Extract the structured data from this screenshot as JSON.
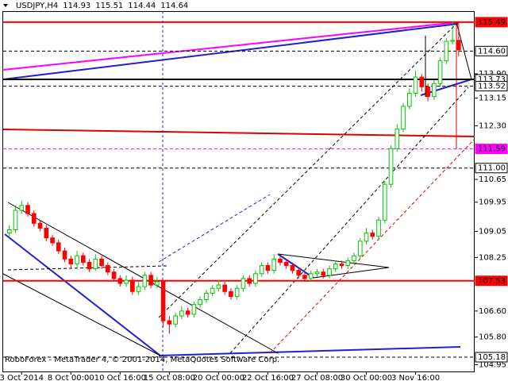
{
  "chart_data": {
    "type": "candlestick",
    "symbol": "USDJPY,H4",
    "footer": "RoboForex - MetaTrader 4, © 2001-2014, MetaQuotes Software Corp.",
    "up_color": "#00c800",
    "down_color": "#ff0000",
    "grid": false,
    "xlim": [
      -1,
      75.6
    ],
    "ylim": [
      104.74,
      115.83
    ],
    "xticks": [
      {
        "value": 2,
        "label": "3 Oct 2014"
      },
      {
        "value": 10,
        "label": "8 Oct 00:00"
      },
      {
        "value": 18,
        "label": "10 Oct 16:00"
      },
      {
        "value": 26,
        "label": "15 Oct 08:00"
      },
      {
        "value": 34,
        "label": "20 Oct 00:00"
      },
      {
        "value": 42,
        "label": "22 Oct 16:00"
      },
      {
        "value": 50,
        "label": "27 Oct 08:00"
      },
      {
        "value": 58,
        "label": "30 Oct 00:00"
      },
      {
        "value": 66,
        "label": "3 Nov 16:00"
      }
    ],
    "yticks": [
      {
        "value": 113.9,
        "label": "113.90"
      },
      113.15,
      {
        "value": 112.3,
        "label": "112.30"
      },
      110.65,
      109.95,
      109.05,
      108.25,
      {
        "value": 106.6,
        "label": "106.60"
      },
      {
        "value": 105.8,
        "label": "105.80"
      },
      104.95
    ],
    "levels": [
      {
        "value": 115.49,
        "label": "115.49",
        "color": "#ff0000",
        "dashed": false
      },
      {
        "value": 114.6,
        "label": "114.60",
        "color": "#000000",
        "dashed": true
      },
      {
        "value": 113.73,
        "label": "113.73",
        "color": "#000000",
        "dashed": false
      },
      {
        "value": 113.52,
        "label": "113.52",
        "color": "#000000",
        "dashed": true
      },
      {
        "value": 111.59,
        "label": "111.59",
        "color": "#ff00ff",
        "dashed": true
      },
      {
        "value": 111,
        "label": "111.00",
        "color": "#000000",
        "dashed": true
      },
      {
        "value": 107.53,
        "label": "107.53",
        "color": "#ff0000",
        "dashed": false
      },
      {
        "value": 105.18,
        "label": "105.18",
        "color": "#000000",
        "dashed": true
      }
    ],
    "open": [
      109.0,
      109.1,
      109.7,
      109.85,
      109.6,
      109.3,
      109.15,
      108.85,
      108.7,
      108.45,
      108.2,
      108.05,
      108.3,
      108.1,
      107.9,
      108.2,
      108.0,
      107.8,
      107.6,
      107.45,
      107.55,
      107.2,
      107.35,
      107.7,
      107.4,
      107.5,
      106.3,
      106.2,
      106.45,
      106.6,
      106.5,
      106.8,
      106.95,
      107.15,
      107.3,
      107.4,
      107.2,
      107.05,
      107.3,
      107.6,
      107.45,
      107.75,
      108.0,
      107.85,
      108.2,
      108.1,
      108.0,
      107.85,
      107.7,
      107.6,
      107.75,
      107.8,
      107.7,
      107.9,
      108.05,
      108.0,
      108.15,
      108.3,
      108.75,
      109.0,
      108.9,
      109.4,
      110.5,
      111.6,
      112.2,
      112.9,
      113.3,
      113.8,
      113.5,
      113.2,
      113.6,
      114.3,
      114.9,
      114.93
    ],
    "high": [
      109.25,
      109.85,
      110.0,
      109.95,
      109.7,
      109.4,
      109.25,
      108.95,
      108.8,
      108.55,
      108.3,
      108.45,
      108.4,
      108.2,
      108.35,
      108.3,
      108.1,
      107.9,
      107.7,
      107.7,
      107.65,
      107.5,
      107.8,
      107.8,
      107.65,
      107.55,
      106.45,
      106.55,
      106.75,
      106.7,
      106.9,
      107.05,
      107.25,
      107.4,
      107.55,
      107.5,
      107.3,
      107.4,
      107.7,
      107.7,
      107.85,
      108.1,
      108.1,
      108.35,
      108.3,
      108.2,
      108.1,
      107.95,
      107.8,
      107.85,
      107.9,
      107.9,
      108.0,
      108.15,
      108.15,
      108.25,
      108.4,
      108.85,
      109.15,
      109.1,
      109.5,
      110.6,
      111.7,
      112.35,
      113.0,
      113.45,
      114.0,
      113.9,
      113.6,
      113.7,
      114.4,
      115.0,
      115.49,
      115.51
    ],
    "low": [
      108.9,
      109.0,
      109.6,
      109.5,
      109.2,
      109.05,
      108.75,
      108.6,
      108.35,
      108.1,
      107.9,
      107.95,
      108.0,
      107.8,
      107.85,
      107.9,
      107.7,
      107.5,
      107.35,
      107.35,
      107.1,
      107.1,
      107.25,
      107.3,
      107.3,
      106.1,
      105.9,
      106.1,
      106.35,
      106.4,
      106.4,
      106.7,
      106.85,
      107.05,
      107.2,
      107.1,
      106.95,
      106.95,
      107.2,
      107.35,
      107.35,
      107.65,
      107.75,
      107.75,
      108.0,
      107.9,
      107.75,
      107.6,
      107.5,
      107.5,
      107.65,
      107.6,
      107.6,
      107.8,
      107.9,
      107.9,
      108.05,
      108.2,
      108.65,
      108.8,
      108.8,
      109.3,
      110.4,
      111.5,
      112.1,
      112.8,
      113.2,
      113.35,
      113.05,
      113.1,
      113.5,
      114.2,
      114.8,
      114.44
    ],
    "close": [
      109.1,
      109.7,
      109.85,
      109.6,
      109.3,
      109.15,
      108.85,
      108.7,
      108.45,
      108.2,
      108.05,
      108.3,
      108.1,
      107.9,
      108.2,
      108.0,
      107.8,
      107.6,
      107.45,
      107.55,
      107.2,
      107.35,
      107.7,
      107.4,
      107.5,
      106.3,
      106.2,
      106.45,
      106.6,
      106.5,
      106.8,
      106.95,
      107.15,
      107.3,
      107.4,
      107.2,
      107.05,
      107.3,
      107.6,
      107.45,
      107.75,
      108.0,
      107.85,
      108.2,
      108.1,
      108.0,
      107.85,
      107.7,
      107.6,
      107.75,
      107.8,
      107.7,
      107.9,
      108.05,
      108.0,
      108.15,
      108.3,
      108.75,
      109.0,
      108.9,
      109.4,
      110.5,
      111.6,
      112.2,
      112.9,
      113.3,
      113.8,
      113.5,
      113.2,
      113.6,
      114.3,
      114.9,
      114.93,
      114.64
    ]
  }
}
